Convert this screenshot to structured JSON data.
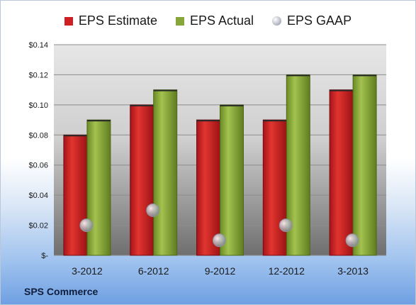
{
  "chart_data": {
    "type": "bar",
    "categories": [
      "3-2012",
      "6-2012",
      "9-2012",
      "12-2012",
      "3-2013"
    ],
    "series": [
      {
        "name": "EPS Estimate",
        "kind": "bar",
        "color": "#d01f23",
        "values": [
          0.08,
          0.1,
          0.09,
          0.09,
          0.11
        ]
      },
      {
        "name": "EPS Actual",
        "kind": "bar",
        "color": "#86a63a",
        "values": [
          0.09,
          0.11,
          0.1,
          0.12,
          0.12
        ]
      },
      {
        "name": "EPS GAAP",
        "kind": "marker",
        "color": "#b9bcc4",
        "values": [
          0.02,
          0.03,
          0.01,
          0.02,
          0.01
        ]
      }
    ],
    "y_ticks": [
      0,
      0.02,
      0.04,
      0.06,
      0.08,
      0.1,
      0.12,
      0.14
    ],
    "y_tick_labels": [
      "$-",
      "$0.02",
      "$0.04",
      "$0.06",
      "$0.08",
      "$0.10",
      "$0.12",
      "$0.14"
    ],
    "ylim": [
      0,
      0.14
    ],
    "grid": true,
    "legend_position": "top-center"
  },
  "company": "SPS Commerce"
}
